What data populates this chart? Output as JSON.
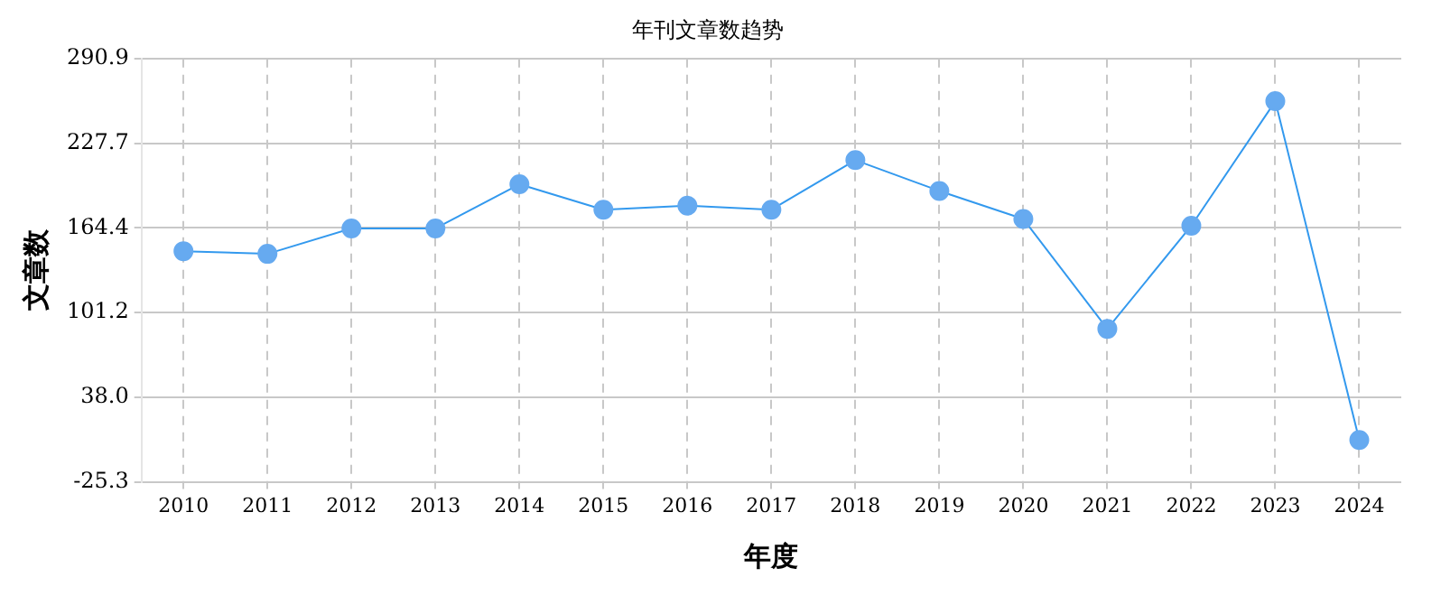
{
  "chart_data": {
    "type": "line",
    "title": "年刊文章数趋势",
    "xlabel": "年度",
    "ylabel": "文章数",
    "categories": [
      "2010",
      "2011",
      "2012",
      "2013",
      "2014",
      "2015",
      "2016",
      "2017",
      "2018",
      "2019",
      "2020",
      "2021",
      "2022",
      "2023",
      "2024"
    ],
    "series": [
      {
        "color": "#3399ee",
        "values": [
          147,
          145,
          164,
          164,
          197,
          178,
          181,
          178,
          215,
          192,
          171,
          89,
          166,
          259,
          6
        ]
      }
    ],
    "ylim": [
      -25.3,
      290.9
    ],
    "yticks": [
      -25.3,
      {
        "value": 38,
        "label": "38.0"
      },
      101.2,
      164.4,
      227.7,
      290.9
    ],
    "grid": true,
    "marker": "circle",
    "line_style": "solid",
    "legend": false
  }
}
